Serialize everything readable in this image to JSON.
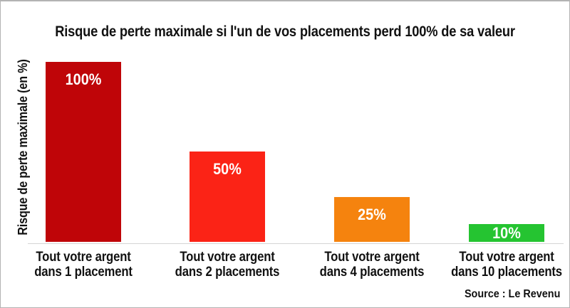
{
  "title": "Risque de perte maximale si l'un de vos placements perd 100% de sa valeur",
  "source": "Source : Le Revenu",
  "chart_data": {
    "type": "bar",
    "title": "Risque de perte maximale si l'un de vos placements perd 100% de sa valeur",
    "xlabel": "",
    "ylabel": "Risque de perte maximale (en %)",
    "ylim": [
      0,
      100
    ],
    "grid": false,
    "legend": false,
    "categories": [
      "Tout votre argent dans 1 placement",
      "Tout votre argent dans 2 placements",
      "Tout votre argent dans 4 placements",
      "Tout votre argent dans 10 placements"
    ],
    "category_lines": [
      [
        "Tout votre argent",
        "dans 1 placement"
      ],
      [
        "Tout votre argent",
        "dans 2 placements"
      ],
      [
        "Tout votre argent",
        "dans 4 placements"
      ],
      [
        "Tout votre argent",
        "dans 10 placements"
      ]
    ],
    "values": [
      100,
      50,
      25,
      10
    ],
    "value_labels": [
      "100%",
      "50%",
      "25%",
      "10%"
    ],
    "bar_colors": [
      "#bf0508",
      "#fb2316",
      "#f5830e",
      "#25c431"
    ],
    "source": "Source : Le Revenu"
  }
}
